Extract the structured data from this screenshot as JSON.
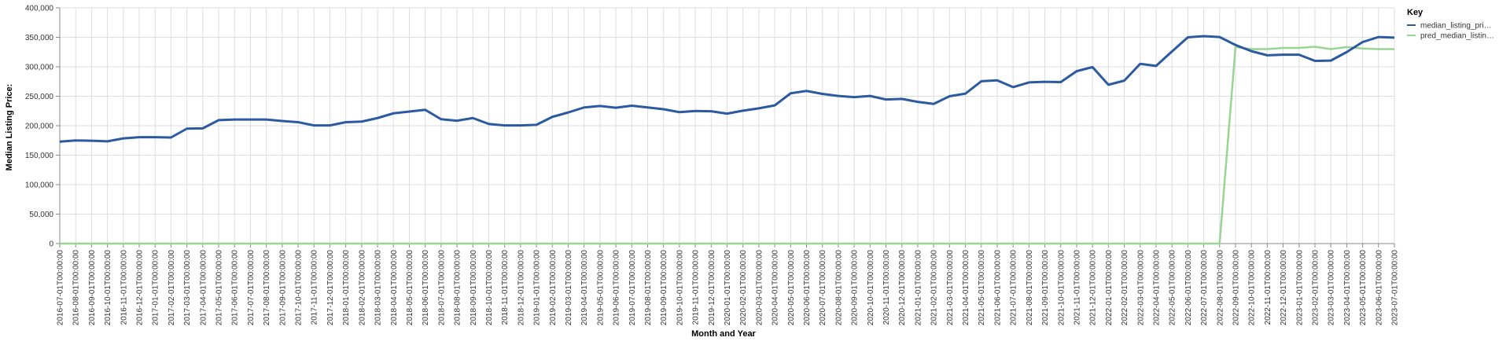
{
  "chart_data": {
    "type": "line",
    "xlabel": "Month and Year",
    "ylabel": "Median Listing Price:",
    "ylim": [
      0,
      400000
    ],
    "y_ticks": [
      "0",
      "50,000",
      "100,000",
      "150,000",
      "200,000",
      "250,000",
      "300,000",
      "350,000",
      "400,000"
    ],
    "grid": true,
    "legend": {
      "title": "Key",
      "placement": "right"
    },
    "x": [
      "2016-07-01T00:00:00",
      "2016-08-01T00:00:00",
      "2016-09-01T00:00:00",
      "2016-10-01T00:00:00",
      "2016-11-01T00:00:00",
      "2016-12-01T00:00:00",
      "2017-01-01T00:00:00",
      "2017-02-01T00:00:00",
      "2017-03-01T00:00:00",
      "2017-04-01T00:00:00",
      "2017-05-01T00:00:00",
      "2017-06-01T00:00:00",
      "2017-07-01T00:00:00",
      "2017-08-01T00:00:00",
      "2017-09-01T00:00:00",
      "2017-10-01T00:00:00",
      "2017-11-01T00:00:00",
      "2017-12-01T00:00:00",
      "2018-01-01T00:00:00",
      "2018-02-01T00:00:00",
      "2018-03-01T00:00:00",
      "2018-04-01T00:00:00",
      "2018-05-01T00:00:00",
      "2018-06-01T00:00:00",
      "2018-07-01T00:00:00",
      "2018-08-01T00:00:00",
      "2018-09-01T00:00:00",
      "2018-10-01T00:00:00",
      "2018-11-01T00:00:00",
      "2018-12-01T00:00:00",
      "2019-01-01T00:00:00",
      "2019-02-01T00:00:00",
      "2019-03-01T00:00:00",
      "2019-04-01T00:00:00",
      "2019-05-01T00:00:00",
      "2019-06-01T00:00:00",
      "2019-07-01T00:00:00",
      "2019-08-01T00:00:00",
      "2019-09-01T00:00:00",
      "2019-10-01T00:00:00",
      "2019-11-01T00:00:00",
      "2019-12-01T00:00:00",
      "2020-01-01T00:00:00",
      "2020-02-01T00:00:00",
      "2020-03-01T00:00:00",
      "2020-04-01T00:00:00",
      "2020-05-01T00:00:00",
      "2020-06-01T00:00:00",
      "2020-07-01T00:00:00",
      "2020-08-01T00:00:00",
      "2020-09-01T00:00:00",
      "2020-10-01T00:00:00",
      "2020-11-01T00:00:00",
      "2020-12-01T00:00:00",
      "2021-01-01T00:00:00",
      "2021-02-01T00:00:00",
      "2021-03-01T00:00:00",
      "2021-04-01T00:00:00",
      "2021-05-01T00:00:00",
      "2021-06-01T00:00:00",
      "2021-07-01T00:00:00",
      "2021-08-01T00:00:00",
      "2021-09-01T00:00:00",
      "2021-10-01T00:00:00",
      "2021-11-01T00:00:00",
      "2021-12-01T00:00:00",
      "2022-01-01T00:00:00",
      "2022-02-01T00:00:00",
      "2022-03-01T00:00:00",
      "2022-04-01T00:00:00",
      "2022-05-01T00:00:00",
      "2022-06-01T00:00:00",
      "2022-07-01T00:00:00",
      "2022-08-01T00:00:00",
      "2022-09-01T00:00:00",
      "2022-10-01T00:00:00",
      "2022-11-01T00:00:00",
      "2022-12-01T00:00:00",
      "2023-01-01T00:00:00",
      "2023-02-01T00:00:00",
      "2023-03-01T00:00:00",
      "2023-04-01T00:00:00",
      "2023-05-01T00:00:00",
      "2023-06-01T00:00:00",
      "2023-07-01T00:00:00"
    ],
    "series": [
      {
        "name": "median_listing_pri…",
        "color": "#2c5aa0",
        "values": [
          173000,
          175000,
          174500,
          173500,
          178500,
          180500,
          180500,
          180000,
          195000,
          195500,
          209500,
          210500,
          210500,
          210500,
          208000,
          206000,
          200500,
          200500,
          206000,
          207000,
          213000,
          221000,
          224000,
          227000,
          211000,
          208500,
          213000,
          203000,
          200500,
          200500,
          201500,
          215000,
          222500,
          231000,
          233500,
          230500,
          234000,
          231000,
          228000,
          223000,
          225000,
          224500,
          220500,
          225500,
          229500,
          234500,
          255000,
          259000,
          254000,
          250500,
          248500,
          250500,
          244500,
          245500,
          240500,
          237000,
          250000,
          254500,
          275500,
          277000,
          265500,
          273500,
          274500,
          274000,
          292500,
          299500,
          269500,
          276500,
          305000,
          301500,
          326000,
          350000,
          352000,
          350500,
          337000,
          326500,
          319500,
          320500,
          320500,
          310000,
          310500,
          325000,
          342000,
          350500,
          349500
        ]
      },
      {
        "name": "pred_median_listin…",
        "color": "#98d494",
        "values": [
          0,
          0,
          0,
          0,
          0,
          0,
          0,
          0,
          0,
          0,
          0,
          0,
          0,
          0,
          0,
          0,
          0,
          0,
          0,
          0,
          0,
          0,
          0,
          0,
          0,
          0,
          0,
          0,
          0,
          0,
          0,
          0,
          0,
          0,
          0,
          0,
          0,
          0,
          0,
          0,
          0,
          0,
          0,
          0,
          0,
          0,
          0,
          0,
          0,
          0,
          0,
          0,
          0,
          0,
          0,
          0,
          0,
          0,
          0,
          0,
          0,
          0,
          0,
          0,
          0,
          0,
          0,
          0,
          0,
          0,
          0,
          0,
          0,
          0,
          333500,
          330000,
          330000,
          332000,
          332000,
          334000,
          330000,
          333500,
          331000,
          330000,
          330000
        ]
      }
    ]
  }
}
